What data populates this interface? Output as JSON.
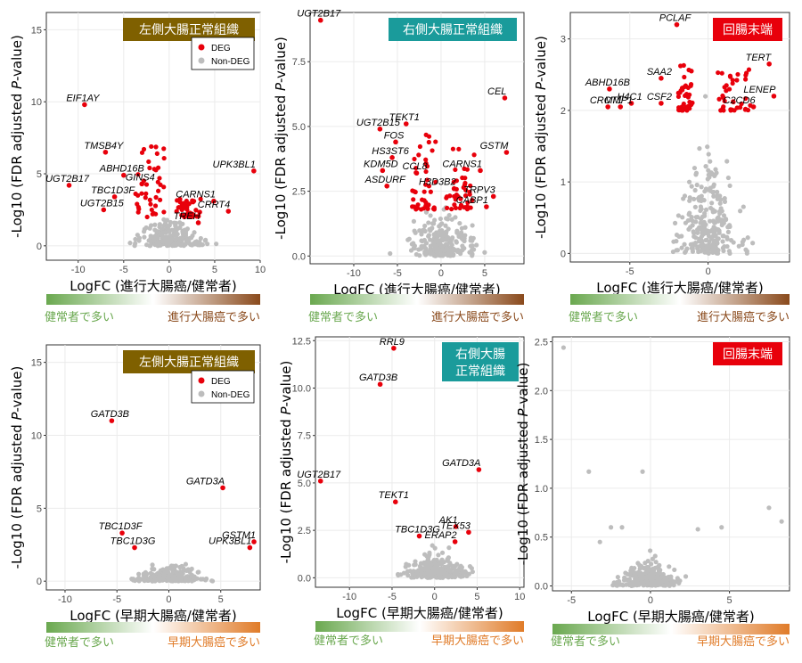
{
  "colors": {
    "deg": "#e8000b",
    "non_deg": "#bdbdbd",
    "grid": "#ebebeb",
    "green": "#6aa84f",
    "brown": "#8a4a1c",
    "orange": "#e07b28",
    "region_olive": "#7f6000",
    "region_teal": "#1a9b9b",
    "region_red": "#e8000b"
  },
  "legend": {
    "deg": "DEG",
    "non_deg": "Non-DEG"
  },
  "y_title_parts": [
    "-Log10 (FDR adjusted ",
    "P",
    "-value)"
  ],
  "chart_data": [
    {
      "type": "scatter",
      "region": "左側大腸正常組織",
      "xlabel": "LogFC (進行大腸癌/健常者)",
      "ylabel": "-Log10 (FDR adjusted P-value)",
      "xlim": [
        -13.5,
        10
      ],
      "ylim": [
        -1,
        16.2
      ],
      "xticks": [
        -10,
        -5,
        0,
        5,
        10
      ],
      "yticks": [
        0,
        5,
        10,
        15
      ],
      "legend": true,
      "gradient": {
        "left": "健常者で多い",
        "right": "進行大腸癌で多い",
        "end_color": "brown"
      },
      "labeled_genes": [
        {
          "gene": "EIF1AY",
          "x": -9.3,
          "y": 9.8
        },
        {
          "gene": "TMSB4Y",
          "x": -7.0,
          "y": 6.5
        },
        {
          "gene": "ABHD16B",
          "x": -5.0,
          "y": 4.9
        },
        {
          "gene": "GINS4",
          "x": -3.0,
          "y": 4.3
        },
        {
          "gene": "UGT2B17",
          "x": -11.0,
          "y": 4.2
        },
        {
          "gene": "TBC1D3F",
          "x": -6.0,
          "y": 3.4
        },
        {
          "gene": "UGT2B15",
          "x": -7.2,
          "y": 2.5
        },
        {
          "gene": "UPK3BL1",
          "x": 9.3,
          "y": 5.2
        },
        {
          "gene": "CARNS1",
          "x": 4.9,
          "y": 3.1
        },
        {
          "gene": "CRRT4",
          "x": 6.5,
          "y": 2.4
        },
        {
          "gene": "TREH",
          "x": 3.2,
          "y": 1.6
        }
      ],
      "deg_cluster": [
        {
          "x": [
            -3.7,
            -0.5
          ],
          "y": [
            2.0,
            7.0
          ]
        },
        {
          "x": [
            0.8,
            3.5
          ],
          "y": [
            2.0,
            3.3
          ]
        }
      ],
      "background": {
        "x_spread": 4,
        "y_max": 2.2,
        "count": 160
      }
    },
    {
      "type": "scatter",
      "region": "右側大腸正常組織",
      "xlabel": "LogFC (進行大腸癌/健常者)",
      "ylabel": "-Log10 (FDR adjusted P-value)",
      "xlim": [
        -15,
        9.5
      ],
      "ylim": [
        -0.3,
        9.4
      ],
      "xticks": [
        -10,
        -5,
        0,
        5
      ],
      "yticks": [
        0.0,
        2.5,
        5.0,
        7.5
      ],
      "legend": false,
      "gradient": {
        "left": "健常者で多い",
        "right": "進行大腸癌で多い",
        "end_color": "brown"
      },
      "labeled_genes": [
        {
          "gene": "UGT2B17",
          "x": -13.8,
          "y": 9.1
        },
        {
          "gene": "CEL",
          "x": 7.3,
          "y": 6.1
        },
        {
          "gene": "TEKT1",
          "x": -4.0,
          "y": 5.1
        },
        {
          "gene": "UGT2B15",
          "x": -7.0,
          "y": 4.9
        },
        {
          "gene": "FOS",
          "x": -5.2,
          "y": 4.4
        },
        {
          "gene": "GSTM",
          "x": 7.5,
          "y": 4.0
        },
        {
          "gene": "HS3ST6",
          "x": -5.6,
          "y": 3.8
        },
        {
          "gene": "CARNS1",
          "x": 4.5,
          "y": 3.3
        },
        {
          "gene": "KDM5D",
          "x": -6.7,
          "y": 3.3
        },
        {
          "gene": "CCL8",
          "x": -2.8,
          "y": 3.2
        },
        {
          "gene": "ASDURF",
          "x": -6.2,
          "y": 2.7
        },
        {
          "gene": "H3D3B2",
          "x": 1.5,
          "y": 2.6
        },
        {
          "gene": "TRPV3",
          "x": 6.0,
          "y": 2.3
        },
        {
          "gene": "CABP1",
          "x": 5.2,
          "y": 1.9
        }
      ],
      "deg_cluster": [
        {
          "x": [
            -3.3,
            -0.6
          ],
          "y": [
            1.8,
            5.0
          ]
        },
        {
          "x": [
            0.6,
            3.8
          ],
          "y": [
            1.8,
            4.2
          ]
        }
      ],
      "background": {
        "x_spread": 4.5,
        "y_max": 2.0,
        "count": 170
      }
    },
    {
      "type": "scatter",
      "region": "回腸末端",
      "xlabel": "LogFC (進行大腸癌/健常者)",
      "ylabel": "-Log10 (FDR adjusted P-value)",
      "xlim": [
        -8.8,
        5.2
      ],
      "ylim": [
        -0.12,
        3.37
      ],
      "xticks": [
        -5,
        0
      ],
      "yticks": [
        0,
        1,
        2,
        3
      ],
      "legend": false,
      "gradient": {
        "left": "健常者で多い",
        "right": "進行大腸癌で多い",
        "end_color": "brown"
      },
      "labeled_genes": [
        {
          "gene": "PCLAF",
          "x": -2.0,
          "y": 3.2
        },
        {
          "gene": "TERT",
          "x": 3.9,
          "y": 2.65
        },
        {
          "gene": "ABHD16B",
          "x": -6.3,
          "y": 2.3
        },
        {
          "gene": "SAA2",
          "x": -3.0,
          "y": 2.45
        },
        {
          "gene": "H4C1",
          "x": -4.9,
          "y": 2.1
        },
        {
          "gene": "LENEP",
          "x": 4.2,
          "y": 2.2
        },
        {
          "gene": "CSF2",
          "x": -3.0,
          "y": 2.1
        },
        {
          "gene": "CRCT1",
          "x": -6.4,
          "y": 2.05
        },
        {
          "gene": "MMP1",
          "x": -5.6,
          "y": 2.05
        },
        {
          "gene": "C2CD6",
          "x": 2.9,
          "y": 2.05
        }
      ],
      "deg_cluster": [
        {
          "x": [
            -1.9,
            -1.0
          ],
          "y": [
            2.0,
            2.65
          ]
        },
        {
          "x": [
            0.6,
            2.7
          ],
          "y": [
            2.0,
            2.65
          ]
        }
      ],
      "background": {
        "x_spread": 2.2,
        "y_max": 1.7,
        "count": 200
      }
    },
    {
      "type": "scatter",
      "region": "左側大腸正常組織",
      "xlabel": "LogFC (早期大腸癌/健常者)",
      "ylabel": "-Log10 (FDR adjusted P-value)",
      "xlim": [
        -11.8,
        8.8
      ],
      "ylim": [
        -0.6,
        16.2
      ],
      "xticks": [
        -10,
        -5,
        0,
        5
      ],
      "yticks": [
        0,
        5,
        10,
        15
      ],
      "legend": true,
      "gradient": {
        "left": "健常者で多い",
        "right": "早期大腸癌で多い",
        "end_color": "orange"
      },
      "labeled_genes": [
        {
          "gene": "GATD3B",
          "x": -5.5,
          "y": 11.0
        },
        {
          "gene": "GATD3A",
          "x": 5.2,
          "y": 6.4
        },
        {
          "gene": "GSTM1",
          "x": 8.2,
          "y": 2.7
        },
        {
          "gene": "TBC1D3F",
          "x": -4.5,
          "y": 3.3
        },
        {
          "gene": "UPK3BL1",
          "x": 7.8,
          "y": 2.3
        },
        {
          "gene": "TBC1D3G",
          "x": -3.3,
          "y": 2.3
        }
      ],
      "deg_cluster": [],
      "background": {
        "x_spread": 4.0,
        "y_max": 1.2,
        "count": 170
      }
    },
    {
      "type": "scatter",
      "region": "右側大腸\n正常組織",
      "xlabel": "LogFC (早期大腸癌/健常者)",
      "ylabel": "-Log10 (FDR adjusted P-value)",
      "xlim": [
        -14,
        10.5
      ],
      "ylim": [
        -0.5,
        12.7
      ],
      "xticks": [
        -10,
        -5,
        0,
        5,
        10
      ],
      "yticks": [
        0.0,
        2.5,
        5.0,
        7.5,
        10.0,
        12.5
      ],
      "legend": false,
      "gradient": {
        "left": "健常者で多い",
        "right": "早期大腸癌で多い",
        "end_color": "orange"
      },
      "labeled_genes": [
        {
          "gene": "RRL9",
          "x": -4.8,
          "y": 12.1
        },
        {
          "gene": "GATD3B",
          "x": -6.4,
          "y": 10.2
        },
        {
          "gene": "UGT2B17",
          "x": -13.4,
          "y": 5.1
        },
        {
          "gene": "GATD3A",
          "x": 5.2,
          "y": 5.7
        },
        {
          "gene": "TEKT1",
          "x": -4.6,
          "y": 4.0
        },
        {
          "gene": "AK1",
          "x": 2.5,
          "y": 2.7
        },
        {
          "gene": "TEX53",
          "x": 4.0,
          "y": 2.4
        },
        {
          "gene": "TBC1D3G",
          "x": -1.8,
          "y": 2.2
        },
        {
          "gene": "ERAP2",
          "x": 2.4,
          "y": 1.9
        }
      ],
      "deg_cluster": [],
      "background": {
        "x_spread": 4.0,
        "y_max": 1.6,
        "count": 180
      }
    },
    {
      "type": "scatter",
      "region": "回腸末端",
      "xlabel": "LogFC (早期大腸癌/健常者)",
      "ylabel": "-Log10 (FDR adjusted P-value)",
      "xlim": [
        -6.2,
        8.8
      ],
      "ylim": [
        -0.05,
        2.55
      ],
      "xticks": [
        -5,
        0,
        5
      ],
      "yticks": [
        0.0,
        0.5,
        1.0,
        1.5,
        2.0,
        2.5
      ],
      "legend": false,
      "gradient": {
        "left": "健常者で多い",
        "right": "早期大腸癌で多い",
        "end_color": "orange"
      },
      "labeled_genes": [],
      "deg_cluster": [],
      "background": {
        "x_spread": 2.0,
        "y_max": 0.3,
        "count": 200,
        "extra": [
          [
            -5.5,
            2.44
          ],
          [
            -3.9,
            1.17
          ],
          [
            -0.5,
            1.17
          ],
          [
            7.5,
            0.8
          ],
          [
            8.3,
            0.66
          ],
          [
            -2.5,
            0.6
          ],
          [
            -1.8,
            0.6
          ],
          [
            3.0,
            0.58
          ],
          [
            4.5,
            0.6
          ],
          [
            -3.2,
            0.45
          ]
        ]
      }
    }
  ]
}
